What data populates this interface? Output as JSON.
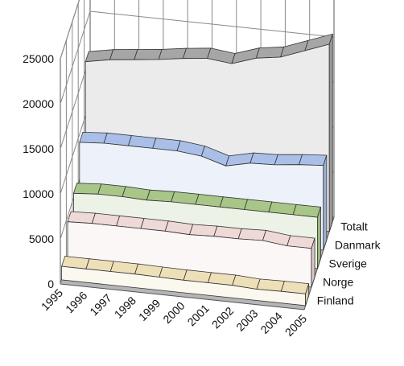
{
  "chart_data": {
    "type": "area",
    "view": "3d-ribbon",
    "title": "",
    "xlabel": "",
    "ylabel": "",
    "ylim": [
      0,
      25000
    ],
    "yticks": [
      0,
      5000,
      10000,
      15000,
      20000,
      25000
    ],
    "grid": true,
    "x": [
      "1995",
      "1996",
      "1997",
      "1998",
      "1999",
      "2000",
      "2001",
      "2002",
      "2003",
      "2004",
      "2005"
    ],
    "series": [
      {
        "name": "Finland",
        "color": "#ede0b8",
        "values": [
          1500,
          1500,
          1500,
          1500,
          1450,
          1400,
          1400,
          1400,
          1250,
          1300,
          1300
        ]
      },
      {
        "name": "Norge",
        "color": "#eed9d6",
        "values": [
          4400,
          4500,
          4500,
          4500,
          4500,
          4400,
          4500,
          4500,
          4600,
          4300,
          4300
        ]
      },
      {
        "name": "Sverige",
        "color": "#a8c688",
        "values": [
          5500,
          5700,
          5700,
          5600,
          5700,
          5700,
          5700,
          5700,
          5700,
          5700,
          5700
        ]
      },
      {
        "name": "Danmark",
        "color": "#aabfe8",
        "values": [
          9100,
          9300,
          9300,
          9300,
          9300,
          9000,
          8200,
          8800,
          8900,
          9200,
          9400
        ]
      },
      {
        "name": "Totalt",
        "color": "#a6a6a6",
        "values": [
          16000,
          16500,
          16800,
          17100,
          17500,
          17800,
          17500,
          18400,
          18800,
          19800,
          20800
        ]
      }
    ]
  }
}
